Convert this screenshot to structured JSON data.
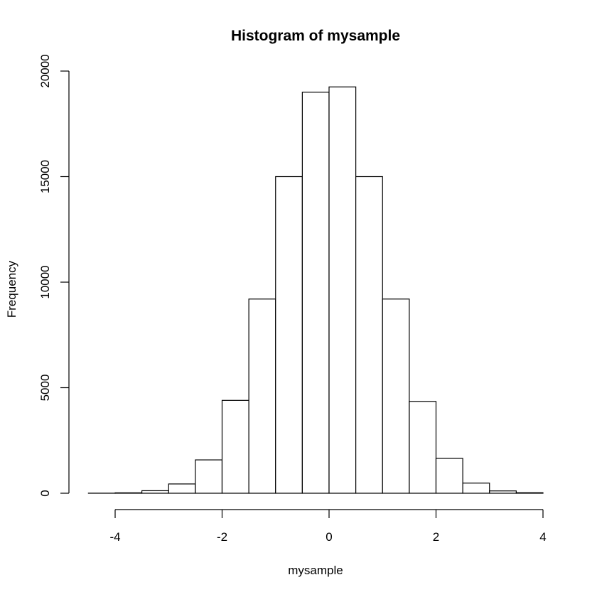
{
  "chart_data": {
    "type": "bar",
    "title": "Histogram of mysample",
    "xlabel": "mysample",
    "ylabel": "Frequency",
    "xlim": [
      -4.5,
      4.0
    ],
    "ylim": [
      0,
      20000
    ],
    "x_ticks": [
      -4,
      -2,
      0,
      2,
      4
    ],
    "y_ticks": [
      0,
      5000,
      10000,
      15000,
      20000
    ],
    "bins": [
      {
        "x0": -4.5,
        "x1": -4.0,
        "count": 3
      },
      {
        "x0": -4.0,
        "x1": -3.5,
        "count": 20
      },
      {
        "x0": -3.5,
        "x1": -3.0,
        "count": 120
      },
      {
        "x0": -3.0,
        "x1": -2.5,
        "count": 440
      },
      {
        "x0": -2.5,
        "x1": -2.0,
        "count": 1580
      },
      {
        "x0": -2.0,
        "x1": -1.5,
        "count": 4400
      },
      {
        "x0": -1.5,
        "x1": -1.0,
        "count": 9200
      },
      {
        "x0": -1.0,
        "x1": -0.5,
        "count": 15000
      },
      {
        "x0": -0.5,
        "x1": 0.0,
        "count": 19000
      },
      {
        "x0": 0.0,
        "x1": 0.5,
        "count": 19250
      },
      {
        "x0": 0.5,
        "x1": 1.0,
        "count": 15000
      },
      {
        "x0": 1.0,
        "x1": 1.5,
        "count": 9200
      },
      {
        "x0": 1.5,
        "x1": 2.0,
        "count": 4350
      },
      {
        "x0": 2.0,
        "x1": 2.5,
        "count": 1650
      },
      {
        "x0": 2.5,
        "x1": 3.0,
        "count": 480
      },
      {
        "x0": 3.0,
        "x1": 3.5,
        "count": 110
      },
      {
        "x0": 3.5,
        "x1": 4.0,
        "count": 25
      }
    ],
    "fill_color": "#ffffff",
    "stroke_color": "#000000",
    "grid": false
  }
}
